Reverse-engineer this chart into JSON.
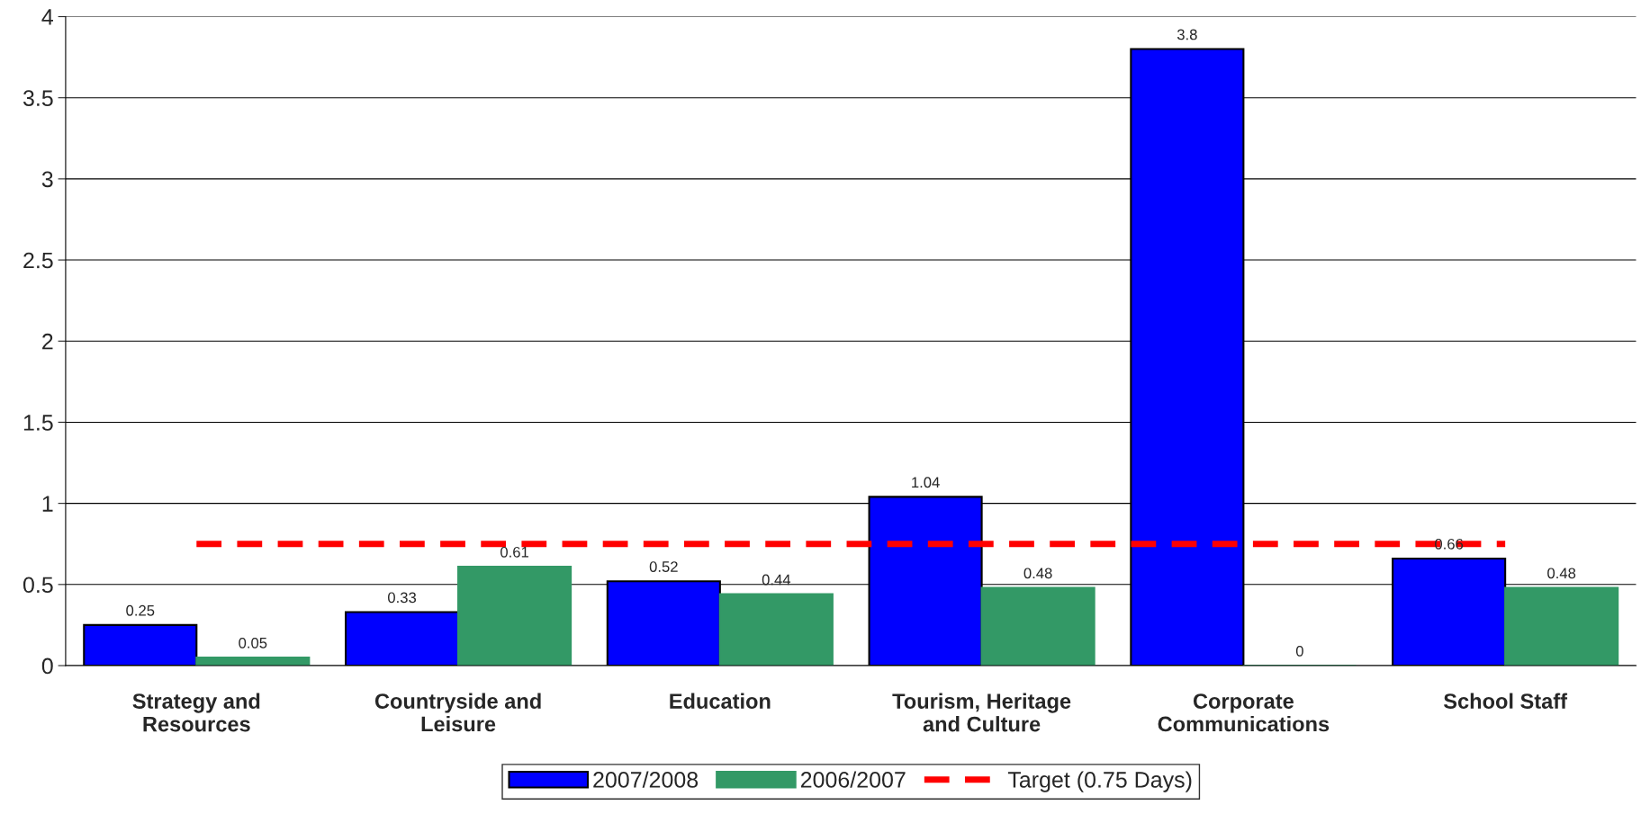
{
  "chart_data": {
    "type": "bar",
    "categories": [
      "Strategy and\nResources",
      "Countryside and\nLeisure",
      "Education",
      "Tourism, Heritage\nand Culture",
      "Corporate\nCommunications",
      "School Staff"
    ],
    "series": [
      {
        "name": "2007/2008",
        "color": "#0000ff",
        "values": [
          0.25,
          0.33,
          0.52,
          1.04,
          3.8,
          0.66
        ],
        "value_labels": [
          "0.25",
          "0.33",
          "0.52",
          "1.04",
          "3.8",
          "0.66"
        ]
      },
      {
        "name": "2006/2007",
        "color": "#339966",
        "values": [
          0.05,
          0.61,
          0.44,
          0.48,
          0,
          0.48
        ],
        "value_labels": [
          "0.05",
          "0.61",
          "0.44",
          "0.48",
          "0",
          "0.48"
        ]
      },
      {
        "name": "Target (0.75 Days)",
        "type": "line",
        "color": "#ff0000",
        "line_style": "dashed",
        "marker": "none",
        "values": [
          0.75,
          0.75,
          0.75,
          0.75,
          0.75,
          0.75
        ]
      }
    ],
    "ylim": [
      0,
      4
    ],
    "yticks": [
      0,
      0.5,
      1,
      1.5,
      2,
      2.5,
      3,
      3.5,
      4
    ],
    "grid": "y",
    "legend": "bottom"
  }
}
